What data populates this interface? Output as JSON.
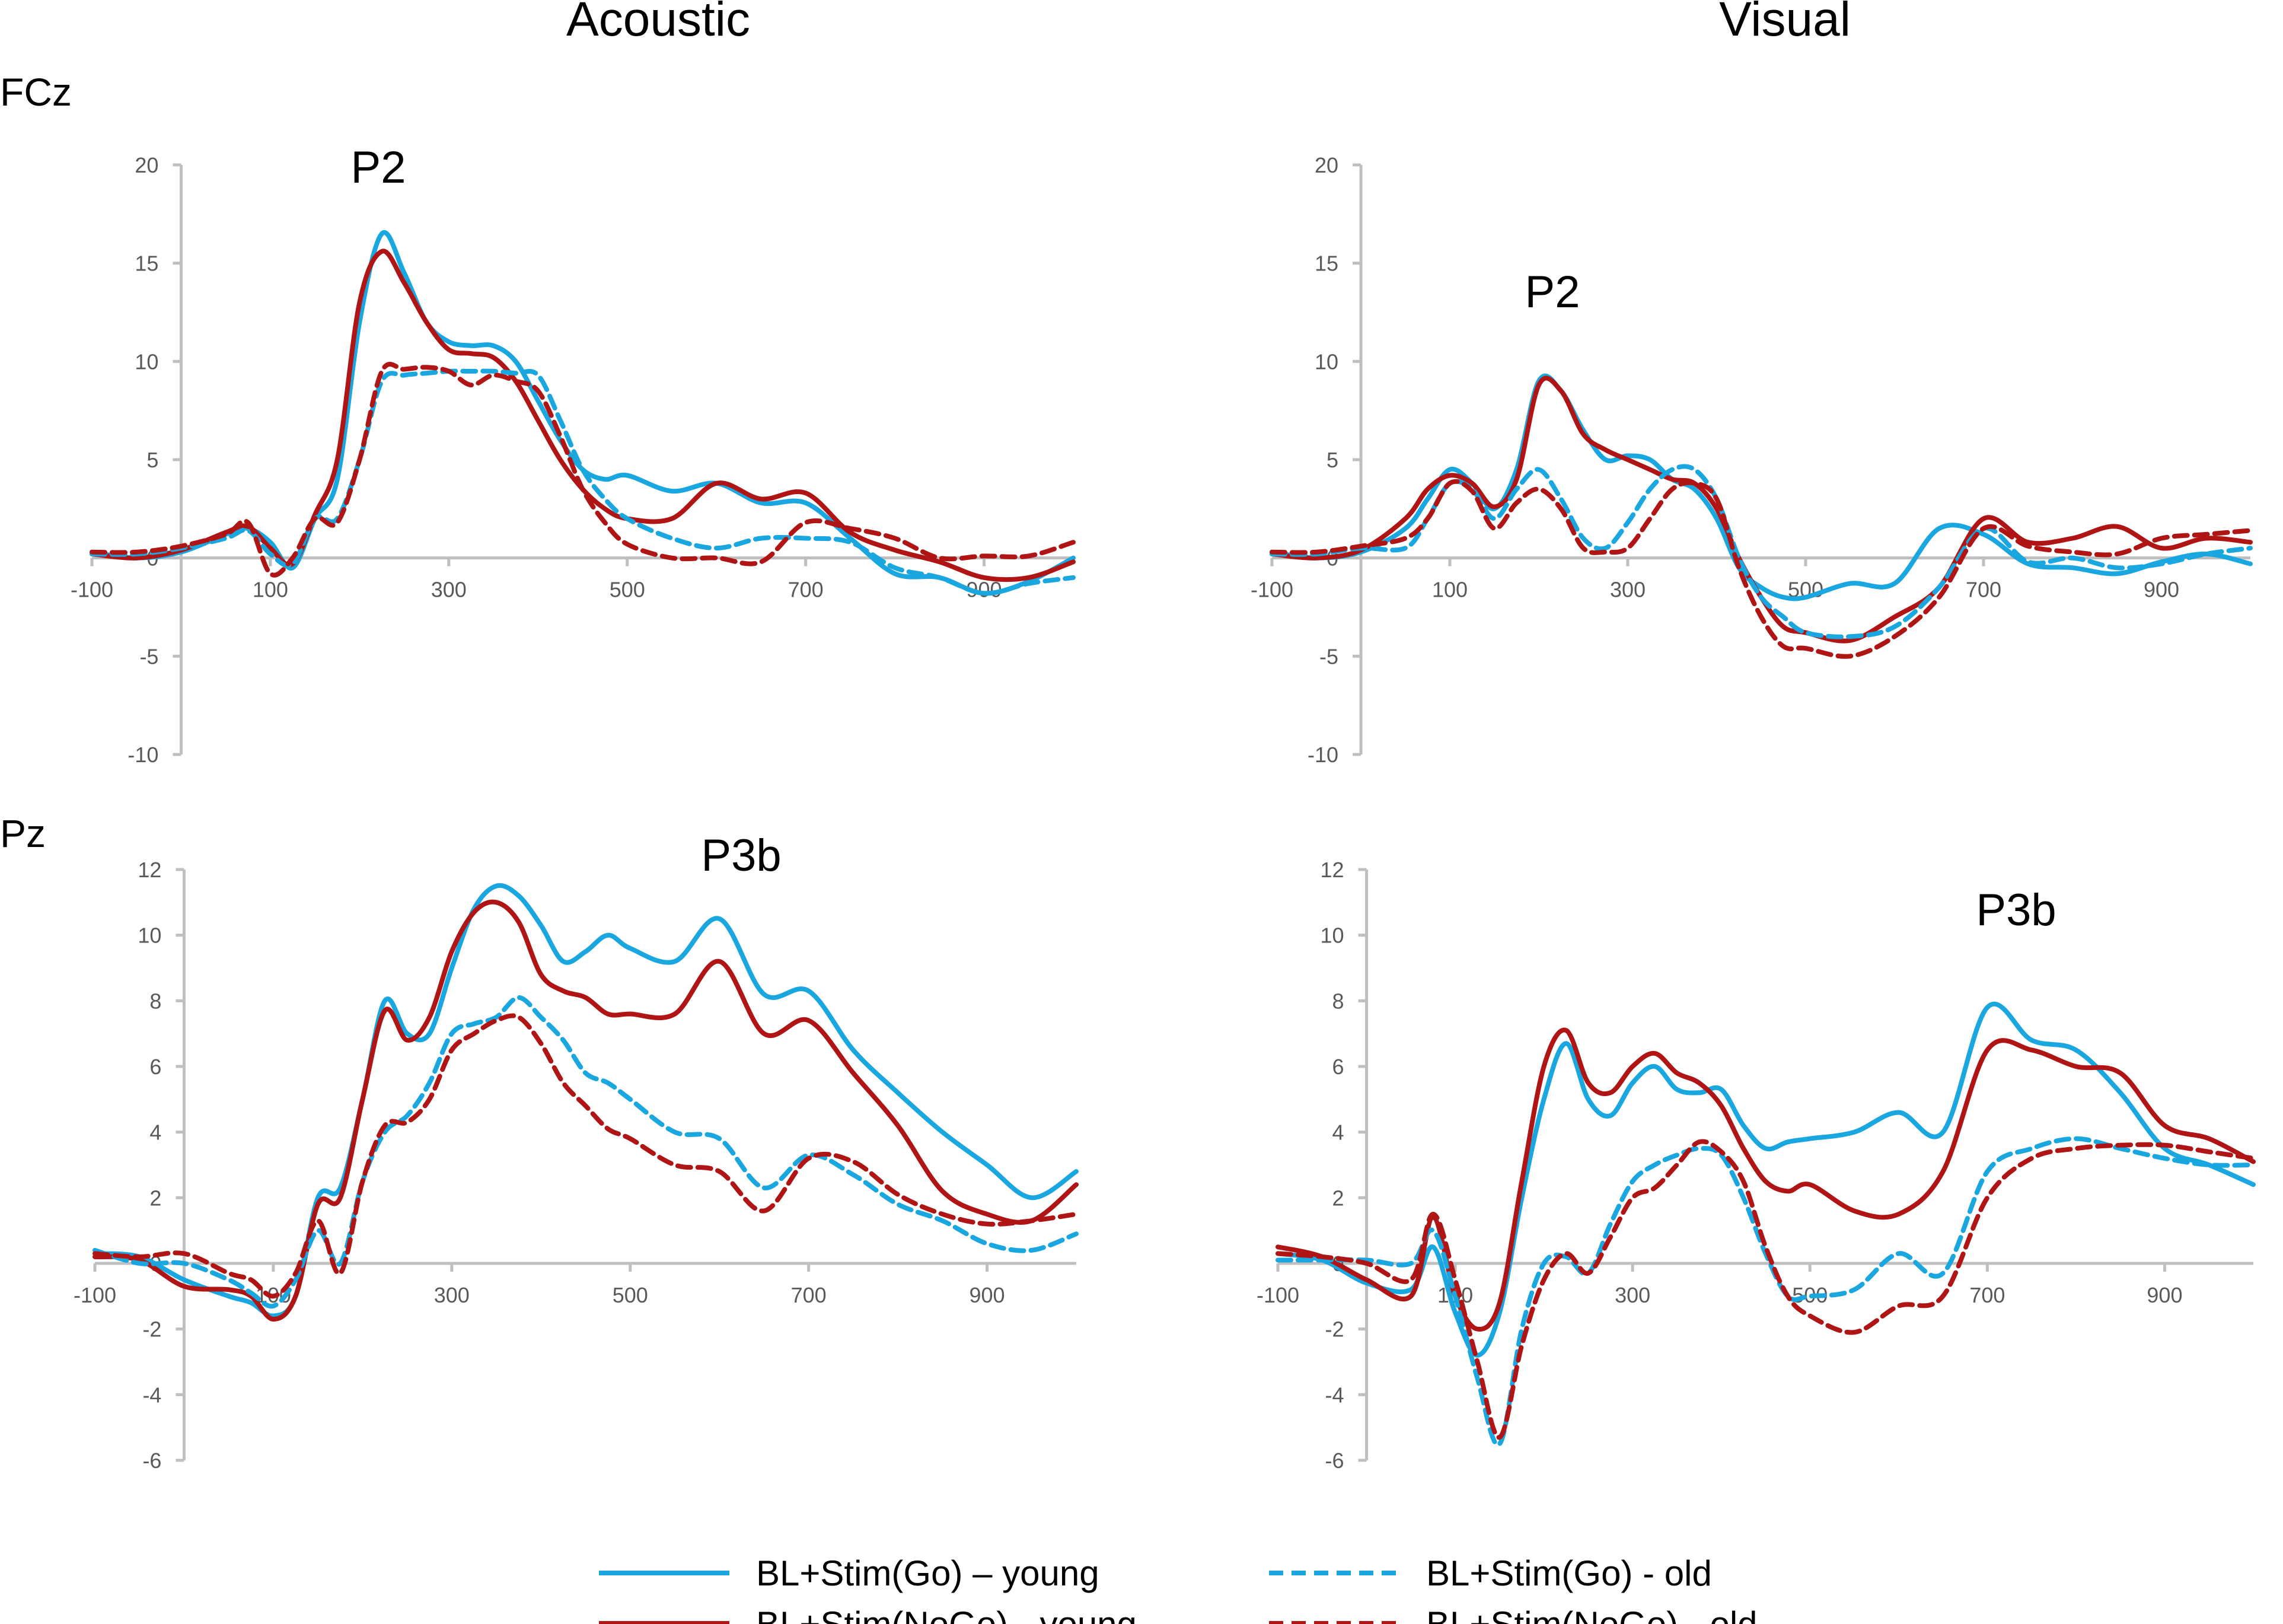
{
  "figure": {
    "column_titles": [
      "Acoustic",
      "Visual"
    ],
    "row_titles": [
      "FCz",
      "Pz"
    ],
    "legend": [
      {
        "label": "BL+Stim(Go) – young",
        "color": "#1aa7e0",
        "dash": "solid"
      },
      {
        "label": "BL+Stim(NoGo) - young",
        "color": "#b01515",
        "dash": "solid"
      },
      {
        "label": "BL+Stim(Go) - old",
        "color": "#1aa7e0",
        "dash": "dashed"
      },
      {
        "label": "BL+Stim(NoGo) - old",
        "color": "#b01515",
        "dash": "dashed"
      }
    ]
  },
  "chart_data": [
    {
      "type": "line",
      "panel": "FCz-Acoustic",
      "annotation": "P2",
      "xlim": [
        -100,
        1000
      ],
      "ylim": [
        -10,
        20
      ],
      "xticks": [
        -100,
        100,
        300,
        500,
        700,
        900
      ],
      "yticks": [
        20,
        15,
        10,
        5,
        0,
        -5,
        -10
      ],
      "x": [
        -100,
        -50,
        0,
        50,
        75,
        100,
        125,
        150,
        175,
        200,
        225,
        250,
        275,
        300,
        325,
        350,
        375,
        400,
        425,
        450,
        475,
        500,
        550,
        600,
        650,
        700,
        750,
        800,
        850,
        900,
        950,
        1000
      ],
      "series": [
        {
          "name": "BL+Stim(Go) – young",
          "values": [
            0.3,
            0,
            0.3,
            1.2,
            1.5,
            0.8,
            -0.5,
            2,
            4,
            12,
            16.5,
            14.5,
            12,
            11,
            10.8,
            10.8,
            10,
            8,
            6,
            4.5,
            4,
            4.2,
            3.4,
            3.8,
            2.8,
            2.8,
            1,
            -0.8,
            -1,
            -1.8,
            -1.2,
            0
          ]
        },
        {
          "name": "BL+Stim(NoGo) - young",
          "values": [
            0.2,
            0,
            0.4,
            1.3,
            1.6,
            0.5,
            -0.3,
            2.2,
            5,
            13,
            15.6,
            14,
            12,
            10.6,
            10.4,
            10.2,
            9,
            7,
            5,
            3.5,
            2.5,
            2,
            2,
            3.8,
            3,
            3.3,
            1.3,
            0.4,
            -0.2,
            -1,
            -1,
            -0.2
          ]
        },
        {
          "name": "BL+Stim(Go) - old",
          "values": [
            0.2,
            0.2,
            0.5,
            1,
            1.4,
            0.2,
            -0.3,
            2,
            2,
            5,
            9,
            9.3,
            9.4,
            9.5,
            9.5,
            9.5,
            9.4,
            9.3,
            7,
            4.5,
            3,
            2,
            1,
            0.5,
            1,
            1,
            0.8,
            -0.5,
            -1,
            -1.8,
            -1.3,
            -1
          ]
        },
        {
          "name": "BL+Stim(NoGo) - old",
          "values": [
            0.3,
            0.3,
            0.6,
            1.2,
            1.8,
            -0.8,
            0,
            2,
            1.8,
            5,
            9.5,
            9.6,
            9.7,
            9.5,
            8.8,
            9.3,
            9,
            8.5,
            6.2,
            3.5,
            1.8,
            0.7,
            0,
            0,
            -0.2,
            1.8,
            1.5,
            1,
            0,
            0.1,
            0.1,
            0.8
          ]
        }
      ]
    },
    {
      "type": "line",
      "panel": "FCz-Visual",
      "annotation": "P2",
      "xlim": [
        -100,
        1000
      ],
      "ylim": [
        -10,
        20
      ],
      "xticks": [
        -100,
        100,
        300,
        500,
        700,
        900
      ],
      "yticks": [
        20,
        15,
        10,
        5,
        0,
        -5,
        -10
      ],
      "x": [
        -100,
        -50,
        0,
        50,
        75,
        100,
        125,
        150,
        175,
        200,
        225,
        250,
        275,
        300,
        325,
        350,
        375,
        400,
        425,
        450,
        475,
        500,
        550,
        600,
        650,
        700,
        750,
        800,
        850,
        900,
        950,
        1000
      ],
      "series": [
        {
          "name": "BL+Stim(Go) – young",
          "values": [
            0.3,
            0,
            0.3,
            1.5,
            3,
            4.5,
            3.8,
            2.5,
            4.5,
            9,
            8.5,
            6.5,
            5,
            5.2,
            5,
            4,
            3.5,
            2,
            -0.5,
            -1.5,
            -2,
            -2,
            -1.3,
            -1.3,
            1.5,
            1.2,
            -0.3,
            -0.5,
            -0.8,
            -0.2,
            0.2,
            -0.3
          ]
        },
        {
          "name": "BL+Stim(NoGo) - young",
          "values": [
            0.2,
            0,
            0.4,
            2,
            3.5,
            4.2,
            3.8,
            2.6,
            4,
            8.8,
            8.5,
            6.3,
            5.5,
            5,
            4.5,
            4,
            3.8,
            2.5,
            0,
            -2,
            -3.5,
            -3.8,
            -4.2,
            -3,
            -1.5,
            2,
            0.8,
            1,
            1.6,
            0.5,
            1,
            0.8
          ]
        },
        {
          "name": "BL+Stim(Go) - old",
          "values": [
            0.2,
            0.2,
            0.5,
            0.5,
            2,
            3.8,
            3.5,
            2,
            3.5,
            4.5,
            3,
            1,
            0.5,
            1.8,
            3.5,
            4.5,
            4.5,
            3,
            0,
            -2,
            -3,
            -3.8,
            -4,
            -3.5,
            -1.5,
            1.5,
            -0.2,
            0,
            -0.5,
            -0.3,
            0.2,
            0.5
          ]
        },
        {
          "name": "BL+Stim(NoGo) - old",
          "values": [
            0.3,
            0.3,
            0.6,
            1,
            2,
            3.8,
            3.4,
            1.5,
            2.8,
            3.5,
            2.5,
            0.5,
            0.3,
            0.5,
            2,
            3.5,
            3.8,
            3,
            -0.5,
            -3,
            -4.5,
            -4.6,
            -5,
            -4,
            -2,
            1.5,
            0.6,
            0.3,
            0.2,
            1,
            1.2,
            1.4
          ]
        }
      ]
    },
    {
      "type": "line",
      "panel": "Pz-Acoustic",
      "annotation": "P3b",
      "xlim": [
        -100,
        1000
      ],
      "ylim": [
        -6,
        12
      ],
      "xticks": [
        -100,
        100,
        300,
        500,
        700,
        900
      ],
      "yticks": [
        12,
        10,
        8,
        6,
        4,
        2,
        0,
        -2,
        -4,
        -6
      ],
      "x": [
        -100,
        -50,
        0,
        50,
        75,
        100,
        125,
        150,
        175,
        200,
        225,
        250,
        275,
        300,
        325,
        350,
        375,
        400,
        425,
        450,
        475,
        500,
        550,
        600,
        650,
        700,
        750,
        800,
        850,
        900,
        950,
        1000
      ],
      "series": [
        {
          "name": "BL+Stim(Go) – young",
          "values": [
            0.3,
            0.2,
            -0.5,
            -1,
            -1.2,
            -1.6,
            -1,
            2,
            2.3,
            5,
            8,
            7,
            7,
            9,
            10.8,
            11.5,
            11.2,
            10.3,
            9.2,
            9.5,
            10,
            9.6,
            9.2,
            10.5,
            8.2,
            8.3,
            6.5,
            5.2,
            4,
            3,
            2,
            2.8
          ]
        },
        {
          "name": "BL+Stim(NoGo) - young",
          "values": [
            0.2,
            0.1,
            -0.7,
            -0.8,
            -1,
            -1.7,
            -1,
            1.8,
            2,
            5,
            7.7,
            6.8,
            7.5,
            9.5,
            10.7,
            11,
            10.4,
            8.8,
            8.3,
            8.1,
            7.6,
            7.6,
            7.6,
            9.2,
            7,
            7.4,
            5.8,
            4.2,
            2.2,
            1.5,
            1.3,
            2.4
          ]
        },
        {
          "name": "BL+Stim(Go) - old",
          "values": [
            0.4,
            0,
            0,
            -0.5,
            -0.9,
            -1.3,
            -0.5,
            1,
            0,
            2.5,
            4,
            4.5,
            5.5,
            7,
            7.3,
            7.5,
            8.1,
            7.5,
            6.8,
            5.8,
            5.5,
            5,
            4,
            3.8,
            2.3,
            3.3,
            2.7,
            1.8,
            1.3,
            0.6,
            0.4,
            0.9
          ]
        },
        {
          "name": "BL+Stim(NoGo) - old",
          "values": [
            0.3,
            0.2,
            0.3,
            -0.3,
            -0.5,
            -1,
            -0.3,
            1.3,
            -0.3,
            2.5,
            4.2,
            4.3,
            5,
            6.5,
            7,
            7.4,
            7.5,
            6.7,
            5.5,
            4.8,
            4.1,
            3.8,
            3,
            2.8,
            1.6,
            3.2,
            3.1,
            2.1,
            1.5,
            1.2,
            1.3,
            1.5
          ]
        }
      ]
    },
    {
      "type": "line",
      "panel": "Pz-Visual",
      "annotation": "P3b",
      "xlim": [
        -100,
        1000
      ],
      "ylim": [
        -6,
        12
      ],
      "xticks": [
        -100,
        100,
        300,
        500,
        700,
        900
      ],
      "yticks": [
        12,
        10,
        8,
        6,
        4,
        2,
        0,
        -2,
        -4,
        -6
      ],
      "x": [
        -100,
        -50,
        0,
        50,
        75,
        100,
        125,
        150,
        175,
        200,
        225,
        250,
        275,
        300,
        325,
        350,
        375,
        400,
        425,
        450,
        475,
        500,
        550,
        600,
        650,
        700,
        750,
        800,
        850,
        900,
        950,
        1000
      ],
      "series": [
        {
          "name": "BL+Stim(Go) – young",
          "values": [
            0.3,
            0.1,
            -0.6,
            -0.8,
            0.5,
            -1.5,
            -2.8,
            -1.5,
            2,
            5,
            6.7,
            5,
            4.5,
            5.5,
            6,
            5.3,
            5.2,
            5.3,
            4.2,
            3.5,
            3.7,
            3.8,
            4,
            4.6,
            4,
            7.8,
            6.8,
            6.5,
            5.2,
            3.5,
            3,
            2.4
          ]
        },
        {
          "name": "BL+Stim(NoGo) - young",
          "values": [
            0.5,
            0.2,
            -0.5,
            -1,
            1.4,
            -1,
            -2,
            -1.2,
            2.5,
            6,
            7.1,
            5.5,
            5.2,
            6,
            6.4,
            5.8,
            5.5,
            4.8,
            3.5,
            2.5,
            2.2,
            2.4,
            1.6,
            1.5,
            2.8,
            6.5,
            6.5,
            6,
            5.8,
            4.2,
            3.8,
            3.1
          ]
        },
        {
          "name": "BL+Stim(Go) - old",
          "values": [
            0.1,
            0.1,
            0.1,
            0,
            1,
            -1,
            -3.5,
            -5.5,
            -2,
            0,
            0.2,
            -0.3,
            1.2,
            2.5,
            3,
            3.3,
            3.5,
            3.3,
            2,
            0.3,
            -1,
            -1,
            -0.8,
            0.3,
            -0.3,
            2.8,
            3.5,
            3.8,
            3.5,
            3.2,
            3,
            3
          ]
        },
        {
          "name": "BL+Stim(NoGo) - old",
          "values": [
            0.3,
            0.2,
            0,
            -0.5,
            1.5,
            -0.5,
            -3,
            -5.3,
            -2.5,
            -0.5,
            0.3,
            -0.3,
            0.8,
            2,
            2.3,
            3,
            3.7,
            3.4,
            2.5,
            0.5,
            -1,
            -1.6,
            -2.1,
            -1.3,
            -1,
            2,
            3.2,
            3.5,
            3.6,
            3.6,
            3.4,
            3.2
          ]
        }
      ]
    }
  ]
}
